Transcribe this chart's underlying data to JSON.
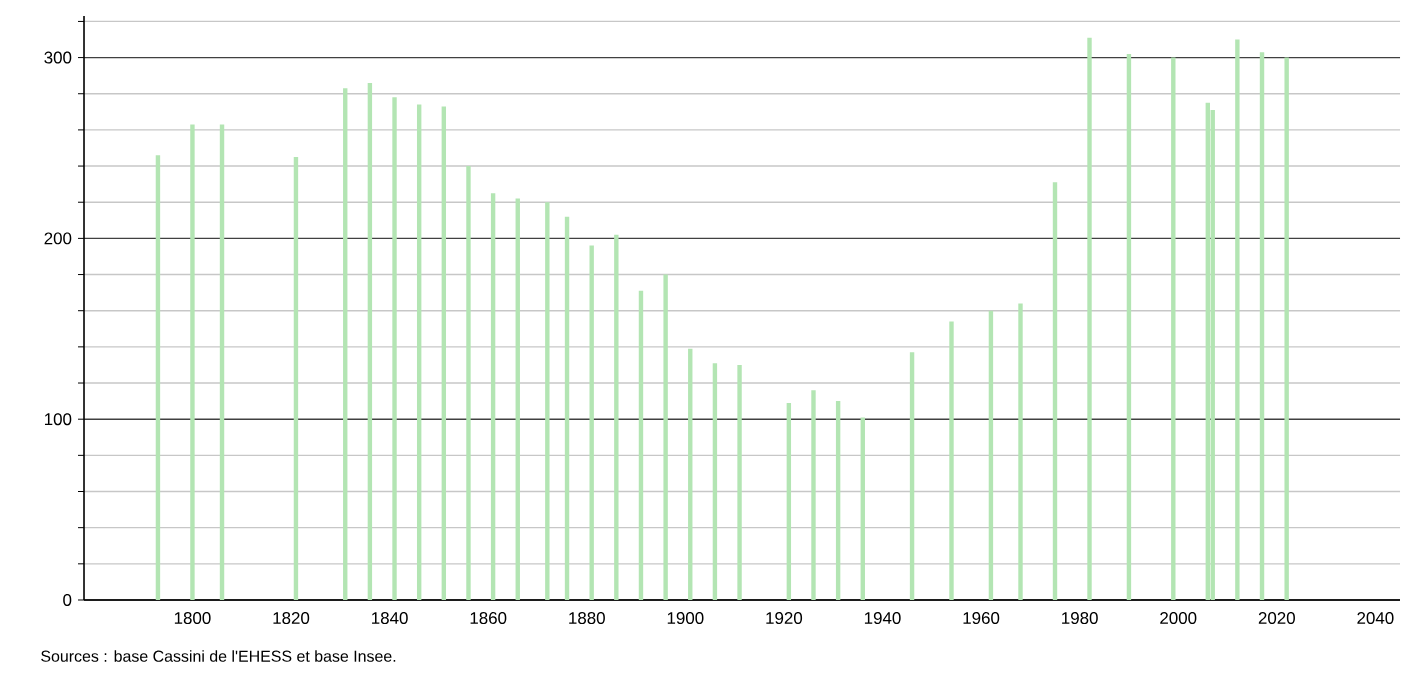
{
  "chart_data": {
    "type": "bar",
    "x": [
      1793,
      1800,
      1806,
      1821,
      1831,
      1836,
      1841,
      1846,
      1851,
      1856,
      1861,
      1866,
      1872,
      1876,
      1881,
      1886,
      1891,
      1896,
      1901,
      1906,
      1911,
      1921,
      1926,
      1931,
      1936,
      1946,
      1954,
      1962,
      1968,
      1975,
      1982,
      1990,
      1999,
      2006,
      2007,
      2012,
      2017,
      2022
    ],
    "values": [
      246,
      263,
      263,
      245,
      283,
      286,
      278,
      274,
      273,
      240,
      225,
      222,
      220,
      212,
      196,
      202,
      171,
      180,
      139,
      131,
      130,
      109,
      116,
      110,
      101,
      137,
      154,
      160,
      164,
      231,
      311,
      302,
      300,
      275,
      271,
      310,
      303,
      300
    ],
    "color": "#b3e5b3",
    "xlim": [
      1778,
      2045
    ],
    "xticks": [
      1800,
      1820,
      1840,
      1860,
      1880,
      1900,
      1920,
      1940,
      1960,
      1980,
      2000,
      2020,
      2040
    ],
    "ylim": [
      0,
      323
    ],
    "yticks": [
      0,
      {
        "value": 20,
        "label": null
      },
      {
        "value": 40,
        "label": null
      },
      {
        "value": 60,
        "label": null
      },
      {
        "value": 80,
        "label": null
      },
      100,
      {
        "value": 120,
        "label": null
      },
      {
        "value": 140,
        "label": null
      },
      {
        "value": 160,
        "label": null
      },
      {
        "value": 180,
        "label": null
      },
      200,
      {
        "value": 220,
        "label": null
      },
      {
        "value": 240,
        "label": null
      },
      {
        "value": 260,
        "label": null
      },
      {
        "value": 280,
        "label": null
      },
      300,
      {
        "value": 320,
        "label": null
      }
    ],
    "grid": true,
    "annotations": [
      "Sources : base Cassini de l'EHESS et base Insee."
    ]
  }
}
